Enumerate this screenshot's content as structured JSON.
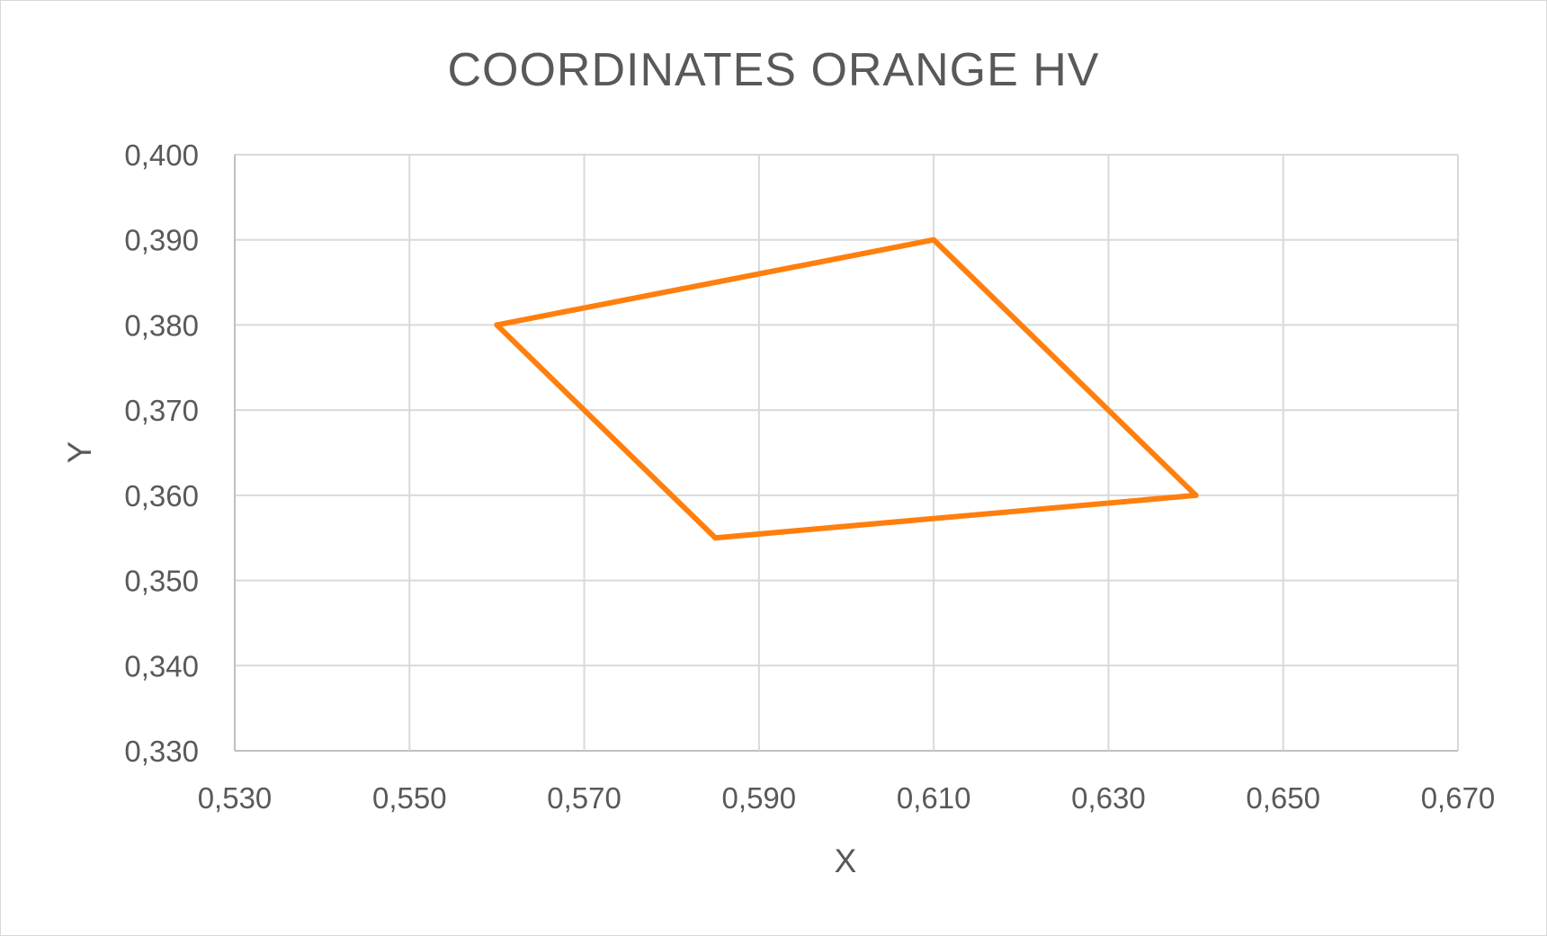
{
  "chart_data": {
    "type": "scatter",
    "title": "COORDINATES ORANGE HV",
    "xlabel": "X",
    "ylabel": "Y",
    "xlim": [
      0.53,
      0.67
    ],
    "ylim": [
      0.33,
      0.4
    ],
    "x_ticks": [
      0.53,
      0.55,
      0.57,
      0.59,
      0.61,
      0.63,
      0.65,
      0.67
    ],
    "y_ticks": [
      0.33,
      0.34,
      0.35,
      0.36,
      0.37,
      0.38,
      0.39,
      0.4
    ],
    "x_tick_labels": [
      "0,530",
      "0,550",
      "0,570",
      "0,590",
      "0,610",
      "0,630",
      "0,650",
      "0,670"
    ],
    "y_tick_labels": [
      "0,330",
      "0,340",
      "0,350",
      "0,360",
      "0,370",
      "0,380",
      "0,390",
      "0,400"
    ],
    "grid": true,
    "legend": "none",
    "series": [
      {
        "style": "line",
        "color": "#ff7f0e",
        "points": [
          {
            "x": 0.56,
            "y": 0.38
          },
          {
            "x": 0.61,
            "y": 0.39
          },
          {
            "x": 0.64,
            "y": 0.36
          },
          {
            "x": 0.585,
            "y": 0.355
          },
          {
            "x": 0.56,
            "y": 0.38
          }
        ]
      }
    ]
  }
}
